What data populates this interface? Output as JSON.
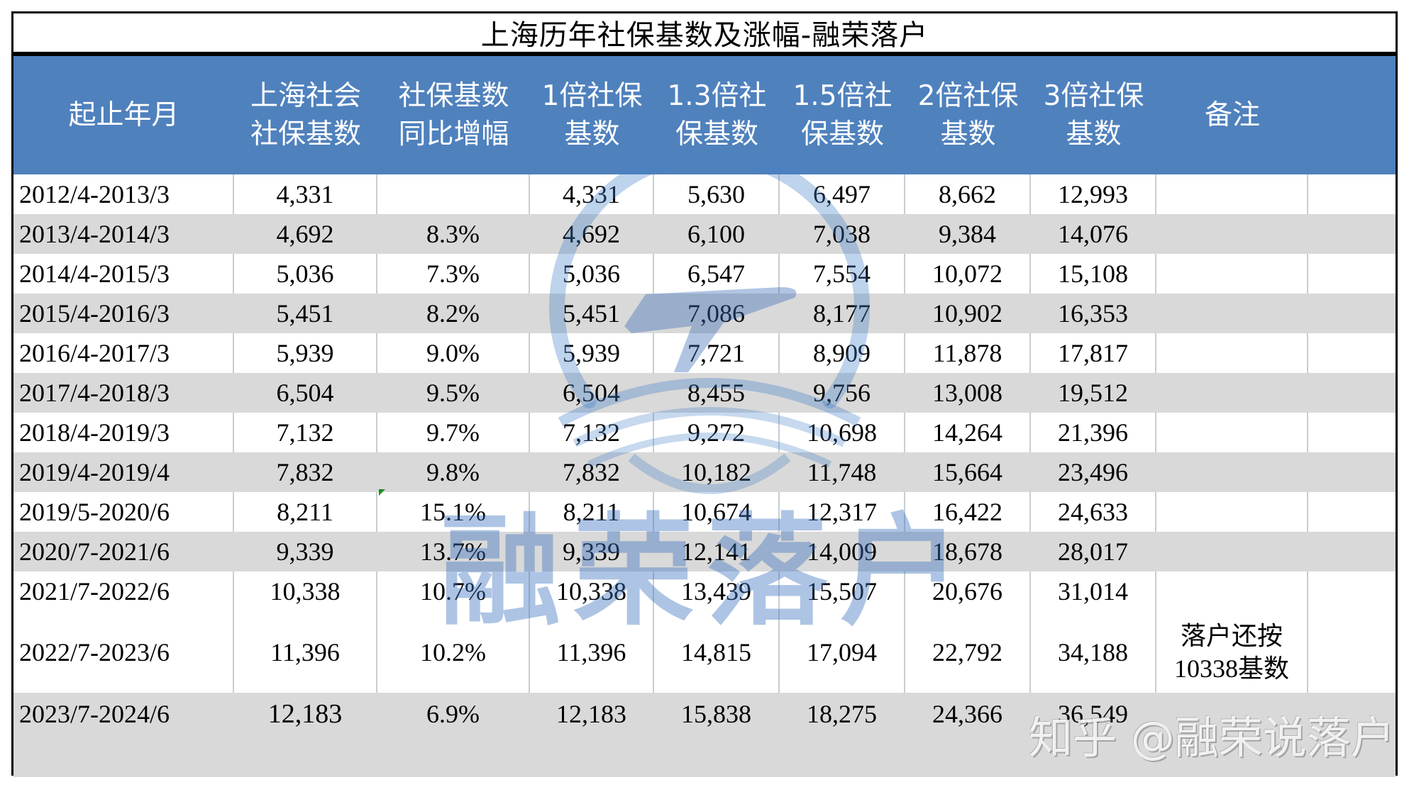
{
  "title": "上海历年社保基数及涨幅-融荣落户",
  "colors": {
    "header_bg": "#4F81BD",
    "header_text": "#FFFFFF",
    "alt_row_bg": "#D9D9D9",
    "watermark": "#3C73BE"
  },
  "columns": [
    {
      "line1": "起止年月",
      "line2": ""
    },
    {
      "line1": "上海社会",
      "line2": "社保基数"
    },
    {
      "line1": "社保基数",
      "line2": "同比增幅"
    },
    {
      "line1": "1倍社保",
      "line2": "基数"
    },
    {
      "line1": "1.3倍社",
      "line2": "保基数"
    },
    {
      "line1": "1.5倍社",
      "line2": "保基数"
    },
    {
      "line1": "2倍社保",
      "line2": "基数"
    },
    {
      "line1": "3倍社保",
      "line2": "基数"
    },
    {
      "line1": "备注",
      "line2": ""
    },
    {
      "line1": "",
      "line2": ""
    }
  ],
  "rows": [
    {
      "period": "2012/4-2013/3",
      "base": "4,331",
      "growth": "",
      "x1": "4,331",
      "x1_3": "5,630",
      "x1_5": "6,497",
      "x2": "8,662",
      "x3": "12,993",
      "remark_l1": "",
      "remark_l2": ""
    },
    {
      "period": "2013/4-2014/3",
      "base": "4,692",
      "growth": "8.3%",
      "x1": "4,692",
      "x1_3": "6,100",
      "x1_5": "7,038",
      "x2": "9,384",
      "x3": "14,076",
      "remark_l1": "",
      "remark_l2": ""
    },
    {
      "period": "2014/4-2015/3",
      "base": "5,036",
      "growth": "7.3%",
      "x1": "5,036",
      "x1_3": "6,547",
      "x1_5": "7,554",
      "x2": "10,072",
      "x3": "15,108",
      "remark_l1": "",
      "remark_l2": ""
    },
    {
      "period": "2015/4-2016/3",
      "base": "5,451",
      "growth": "8.2%",
      "x1": "5,451",
      "x1_3": "7,086",
      "x1_5": "8,177",
      "x2": "10,902",
      "x3": "16,353",
      "remark_l1": "",
      "remark_l2": ""
    },
    {
      "period": "2016/4-2017/3",
      "base": "5,939",
      "growth": "9.0%",
      "x1": "5,939",
      "x1_3": "7,721",
      "x1_5": "8,909",
      "x2": "11,878",
      "x3": "17,817",
      "remark_l1": "",
      "remark_l2": ""
    },
    {
      "period": "2017/4-2018/3",
      "base": "6,504",
      "growth": "9.5%",
      "x1": "6,504",
      "x1_3": "8,455",
      "x1_5": "9,756",
      "x2": "13,008",
      "x3": "19,512",
      "remark_l1": "",
      "remark_l2": ""
    },
    {
      "period": "2018/4-2019/3",
      "base": "7,132",
      "growth": "9.7%",
      "x1": "7,132",
      "x1_3": "9,272",
      "x1_5": "10,698",
      "x2": "14,264",
      "x3": "21,396",
      "remark_l1": "",
      "remark_l2": ""
    },
    {
      "period": "2019/4-2019/4",
      "base": "7,832",
      "growth": "9.8%",
      "x1": "7,832",
      "x1_3": "10,182",
      "x1_5": "11,748",
      "x2": "15,664",
      "x3": "23,496",
      "remark_l1": "",
      "remark_l2": ""
    },
    {
      "period": "2019/5-2020/6",
      "base": "8,211",
      "growth": "15.1%",
      "x1": "8,211",
      "x1_3": "10,674",
      "x1_5": "12,317",
      "x2": "16,422",
      "x3": "24,633",
      "remark_l1": "",
      "remark_l2": ""
    },
    {
      "period": "2020/7-2021/6",
      "base": "9,339",
      "growth": "13.7%",
      "x1": "9,339",
      "x1_3": "12,141",
      "x1_5": "14,009",
      "x2": "18,678",
      "x3": "28,017",
      "remark_l1": "",
      "remark_l2": ""
    },
    {
      "period": "2021/7-2022/6",
      "base": "10,338",
      "growth": "10.7%",
      "x1": "10,338",
      "x1_3": "13,439",
      "x1_5": "15,507",
      "x2": "20,676",
      "x3": "31,014",
      "remark_l1": "",
      "remark_l2": ""
    },
    {
      "period": "2022/7-2023/6",
      "base": "11,396",
      "growth": "10.2%",
      "x1": "11,396",
      "x1_3": "14,815",
      "x1_5": "17,094",
      "x2": "22,792",
      "x3": "34,188",
      "remark_l1": "落户还按",
      "remark_l2": "10338基数"
    },
    {
      "period": "2023/7-2024/6",
      "base": "12,183",
      "growth": "6.9%",
      "x1": "12,183",
      "x1_3": "15,838",
      "x1_5": "18,275",
      "x2": "24,366",
      "x3": "36,549",
      "remark_l1": "",
      "remark_l2": ""
    },
    {
      "period": "",
      "base": "",
      "growth": "",
      "x1": "",
      "x1_3": "",
      "x1_5": "",
      "x2": "",
      "x3": "",
      "remark_l1": "",
      "remark_l2": ""
    }
  ],
  "watermarks": {
    "center_text": "融荣落户",
    "corner_text": "知乎 @融荣说落户",
    "logo": "plane-circle-book-logo"
  }
}
